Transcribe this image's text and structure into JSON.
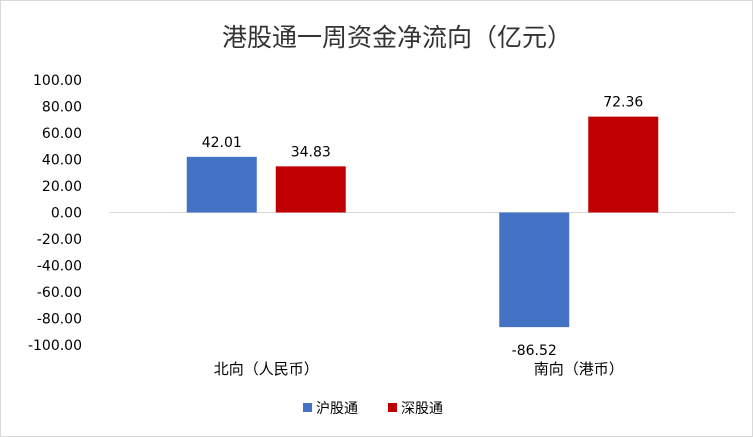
{
  "chart_data": {
    "type": "bar",
    "title": "港股通一周资金净流向（亿元）",
    "categories": [
      "北向（人民币）",
      "南向（港币）"
    ],
    "series": [
      {
        "name": "沪股通",
        "color": "#4472c4",
        "values": [
          42.01,
          -86.52
        ],
        "labels": [
          "42.01",
          "-86.52"
        ]
      },
      {
        "name": "深股通",
        "color": "#c00000",
        "values": [
          34.83,
          72.36
        ],
        "labels": [
          "34.83",
          "72.36"
        ]
      }
    ],
    "yticks": [
      "100.00",
      "80.00",
      "60.00",
      "40.00",
      "20.00",
      "0.00",
      "-20.00",
      "-40.00",
      "-60.00",
      "-80.00",
      "-100.00"
    ],
    "ylim": [
      -100,
      100
    ],
    "grid": false,
    "legend": "bottom"
  }
}
